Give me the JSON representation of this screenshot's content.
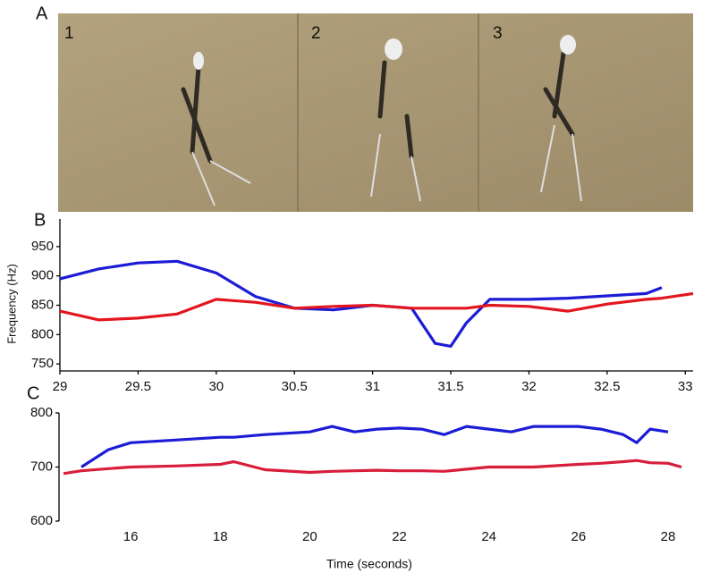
{
  "figure": {
    "panel_labels": [
      "A",
      "B",
      "C"
    ],
    "photo_labels": [
      "1",
      "2",
      "3"
    ]
  },
  "chart_data": [
    {
      "type": "line",
      "ylabel": "Frequency (Hz)",
      "x": [
        29,
        29.25,
        29.5,
        29.75,
        30,
        30.25,
        30.5,
        30.75,
        31,
        31.25,
        31.4,
        31.5,
        31.6,
        31.75,
        32,
        32.25,
        32.5,
        32.75,
        32.85,
        33.05
      ],
      "series": [
        {
          "color": "#1c1cd6",
          "values": [
            895,
            912,
            922,
            925,
            905,
            865,
            845,
            842,
            850,
            845,
            785,
            780,
            820,
            860,
            860,
            862,
            866,
            870,
            880,
            null
          ]
        },
        {
          "color": "#e3161f",
          "values": [
            840,
            825,
            828,
            835,
            860,
            855,
            845,
            848,
            850,
            845,
            845,
            845,
            845,
            850,
            848,
            840,
            852,
            860,
            862,
            870
          ]
        }
      ],
      "xlim": [
        29,
        33.05
      ],
      "xticks": [
        29,
        29.5,
        30,
        30.5,
        31,
        31.5,
        32,
        32.5,
        33
      ],
      "ylim": [
        738,
        997
      ],
      "yticks": [
        750,
        800,
        850,
        900,
        950
      ]
    },
    {
      "type": "line",
      "xlabel": "Time (seconds)",
      "x": [
        14.5,
        14.9,
        15.5,
        16,
        17,
        18,
        18.3,
        19,
        20,
        20.5,
        21,
        21.5,
        22,
        22.5,
        23,
        23.5,
        24,
        24.5,
        25,
        26,
        26.5,
        27,
        27.3,
        27.6,
        28,
        28.3
      ],
      "series": [
        {
          "color": "#1c1cd6",
          "values": [
            null,
            700,
            732,
            745,
            750,
            755,
            755,
            760,
            765,
            775,
            765,
            770,
            772,
            770,
            760,
            775,
            770,
            765,
            775,
            775,
            770,
            760,
            745,
            770,
            765,
            null
          ]
        },
        {
          "color": "#d81e3a",
          "values": [
            688,
            693,
            697,
            700,
            702,
            705,
            710,
            695,
            690,
            692,
            693,
            694,
            693,
            693,
            692,
            696,
            700,
            700,
            700,
            705,
            707,
            710,
            712,
            708,
            707,
            700
          ]
        }
      ],
      "xlim": [
        14.4,
        28.3
      ],
      "xticks": [
        16,
        18,
        20,
        22,
        24,
        26,
        28
      ],
      "ylim": [
        600,
        800
      ],
      "yticks": [
        600,
        700,
        800
      ]
    }
  ]
}
